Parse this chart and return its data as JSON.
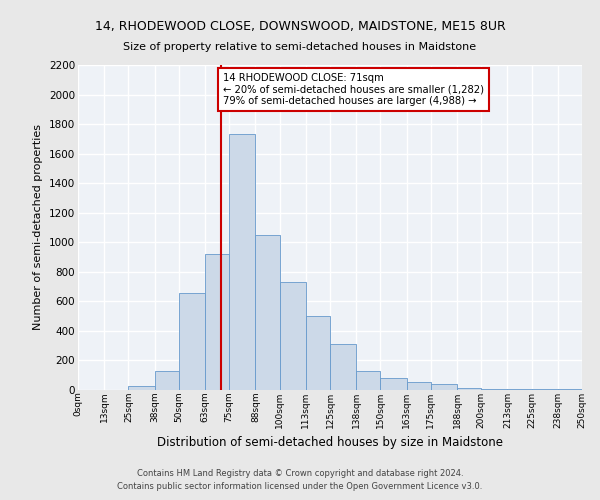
{
  "title1": "14, RHODEWOOD CLOSE, DOWNSWOOD, MAIDSTONE, ME15 8UR",
  "title2": "Size of property relative to semi-detached houses in Maidstone",
  "xlabel": "Distribution of semi-detached houses by size in Maidstone",
  "ylabel": "Number of semi-detached properties",
  "annotation_line1": "14 RHODEWOOD CLOSE: 71sqm",
  "annotation_line2": "← 20% of semi-detached houses are smaller (1,282)",
  "annotation_line3": "79% of semi-detached houses are larger (4,988) →",
  "footer1": "Contains HM Land Registry data © Crown copyright and database right 2024.",
  "footer2": "Contains public sector information licensed under the Open Government Licence v3.0.",
  "bar_edges": [
    0,
    13,
    25,
    38,
    50,
    63,
    75,
    88,
    100,
    113,
    125,
    138,
    150,
    163,
    175,
    188,
    200,
    213,
    225,
    238,
    250
  ],
  "bar_heights": [
    0,
    0,
    25,
    130,
    660,
    920,
    1730,
    1050,
    730,
    500,
    310,
    130,
    80,
    55,
    40,
    15,
    5,
    5,
    5,
    10
  ],
  "bar_color": "#ccd9e8",
  "bar_edgecolor": "#6699cc",
  "vline_x": 71,
  "vline_color": "#cc0000",
  "xlim": [
    0,
    250
  ],
  "ylim": [
    0,
    2200
  ],
  "tick_labels": [
    "0sqm",
    "13sqm",
    "25sqm",
    "38sqm",
    "50sqm",
    "63sqm",
    "75sqm",
    "88sqm",
    "100sqm",
    "113sqm",
    "125sqm",
    "138sqm",
    "150sqm",
    "163sqm",
    "175sqm",
    "188sqm",
    "200sqm",
    "213sqm",
    "225sqm",
    "238sqm",
    "250sqm"
  ],
  "tick_positions": [
    0,
    13,
    25,
    38,
    50,
    63,
    75,
    88,
    100,
    113,
    125,
    138,
    150,
    163,
    175,
    188,
    200,
    213,
    225,
    238,
    250
  ],
  "yticks": [
    0,
    200,
    400,
    600,
    800,
    1000,
    1200,
    1400,
    1600,
    1800,
    2000,
    2200
  ],
  "bg_color": "#eef2f7",
  "grid_color": "#ffffff",
  "fig_bg": "#e8e8e8"
}
